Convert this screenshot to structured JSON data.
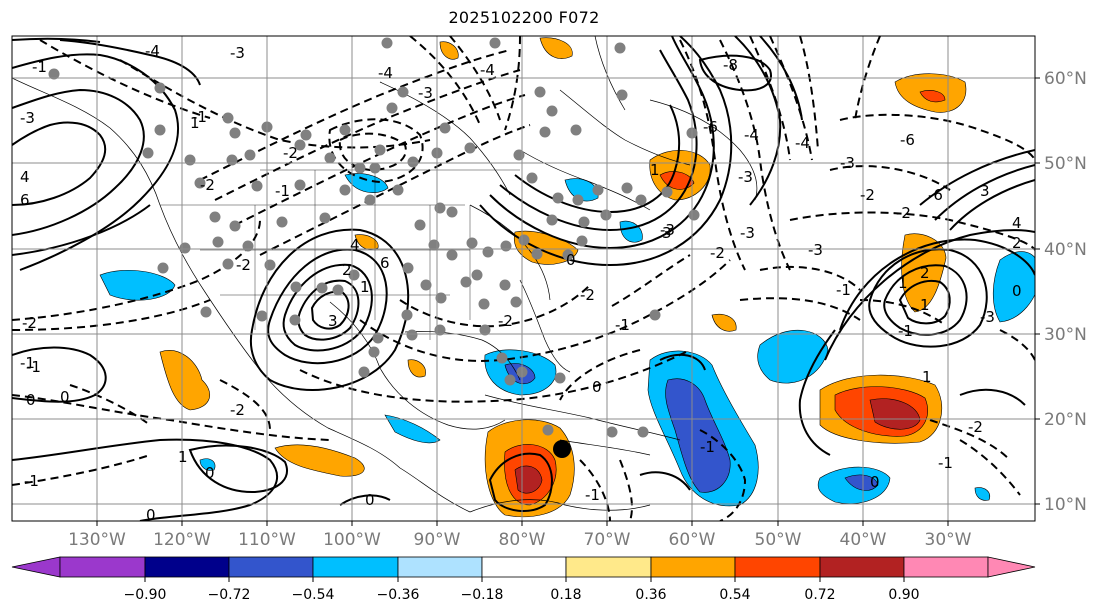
{
  "title": "2025102200 F072",
  "map": {
    "longitude_labels": [
      "130°W",
      "120°W",
      "110°W",
      "100°W",
      "90°W",
      "80°W",
      "70°W",
      "60°W",
      "50°W",
      "40°W",
      "30°W"
    ],
    "latitude_labels": [
      "60°N",
      "50°N",
      "40°N",
      "30°N",
      "20°N",
      "10°N"
    ],
    "contour_labels": [
      "-1",
      "-3",
      "-4",
      "-1",
      "-2",
      "-3",
      "-4",
      "-2",
      "-1",
      "-2",
      "-3",
      "-4",
      "-8",
      "-6",
      "-4",
      "-3",
      "-6",
      "-4",
      "-6",
      "-3",
      "-3",
      "-2",
      "-1",
      "-2",
      "-3",
      "-2",
      "-1",
      "0",
      "1",
      "0",
      "-1",
      "-2",
      "0",
      "-1",
      "0",
      "0",
      "-1",
      "0",
      "-2",
      "-1",
      "0",
      "1",
      "-1",
      "-2",
      "-3",
      "-2",
      "-1",
      "0",
      "3",
      "4",
      "6",
      "2",
      "4",
      "6",
      "1",
      "1",
      "1",
      "3",
      "1",
      "2",
      "4",
      "2",
      "0",
      "1",
      "-1",
      "3",
      "-2",
      "-3"
    ],
    "colors": {
      "land_border": "#000000",
      "grid": "#8c8c8c",
      "dot": "#808080",
      "storm_marker": "#000000",
      "positive_contour": "#000000",
      "negative_contour": "#000000"
    }
  },
  "colorbar": {
    "ticks": [
      "−0.90",
      "−0.72",
      "−0.54",
      "−0.36",
      "−0.18",
      "0.18",
      "0.36",
      "0.54",
      "0.72",
      "0.90"
    ],
    "colors": [
      "#9b38cc",
      "#00008b",
      "#3355cc",
      "#00bfff",
      "#aee2ff",
      "#ffffff",
      "#ffe98a",
      "#ffa500",
      "#ff4500",
      "#b22222",
      "#ff88b4"
    ]
  },
  "chart_data": {
    "type": "map",
    "field": "shaded anomaly with dashed/solid contours",
    "lon_range": [
      -140,
      -20
    ],
    "lat_range": [
      7,
      65
    ],
    "storm_marker": {
      "lon": -75,
      "lat": 17
    }
  }
}
